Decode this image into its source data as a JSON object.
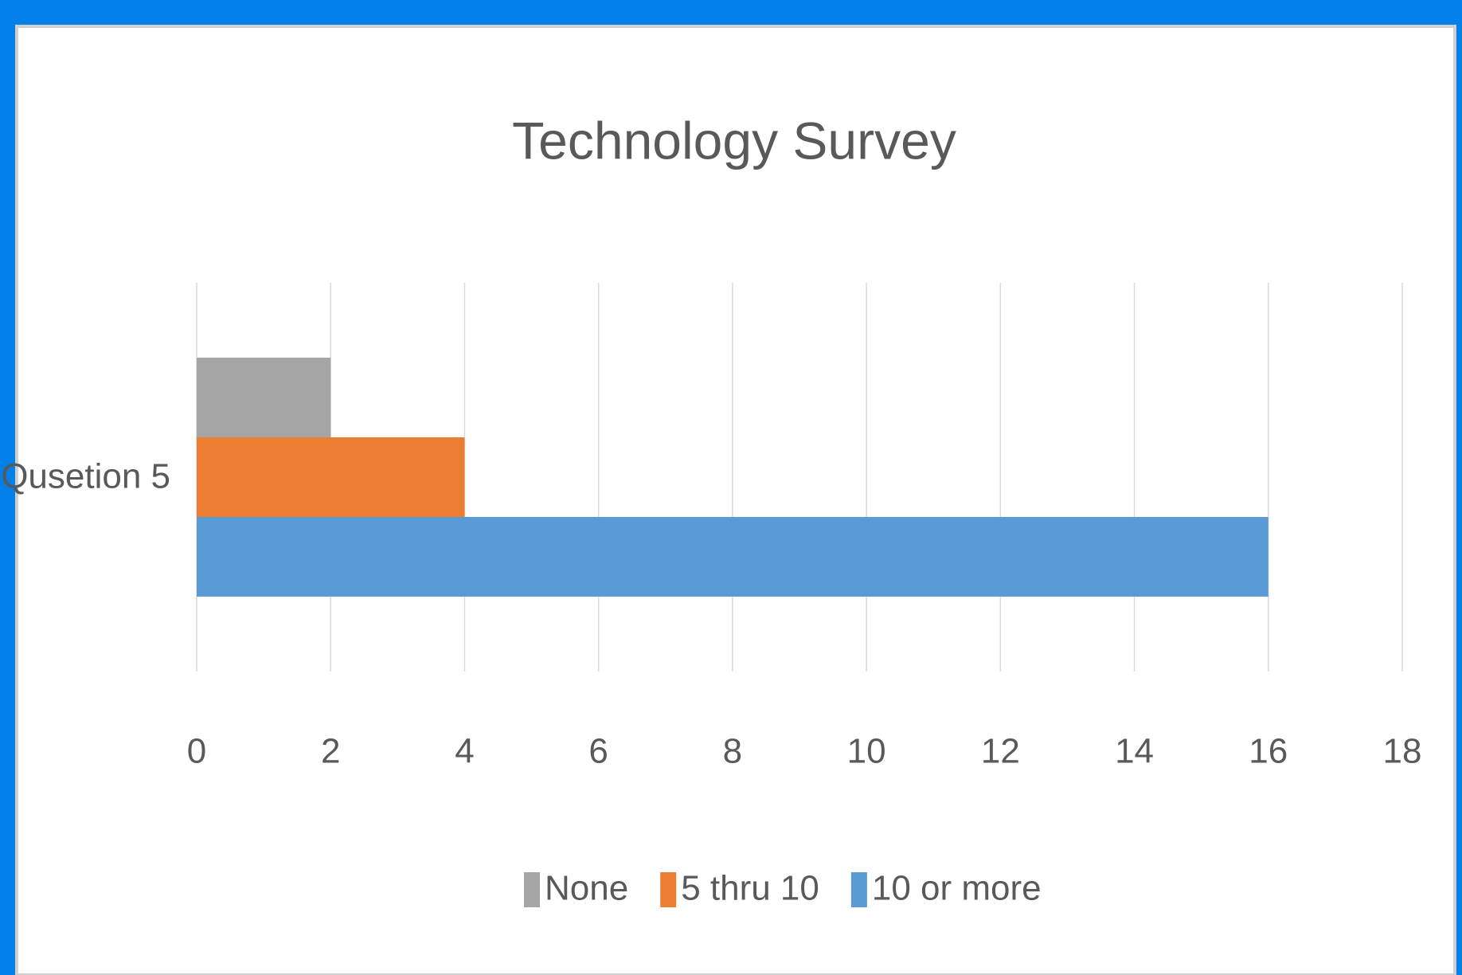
{
  "chart_data": {
    "type": "bar",
    "orientation": "horizontal",
    "title": "Technology Survey",
    "categories": [
      "Qusetion 5"
    ],
    "series": [
      {
        "name": "None",
        "color": "#a5a5a5",
        "values": [
          2
        ]
      },
      {
        "name": "5 thru 10",
        "color": "#ed7d31",
        "values": [
          4
        ]
      },
      {
        "name": "10 or more",
        "color": "#5b9bd5",
        "values": [
          16
        ]
      }
    ],
    "xlim": [
      0,
      18
    ],
    "xticks": [
      0,
      2,
      4,
      6,
      8,
      10,
      12,
      14,
      16,
      18
    ],
    "grid": true,
    "legend": "bottom"
  }
}
